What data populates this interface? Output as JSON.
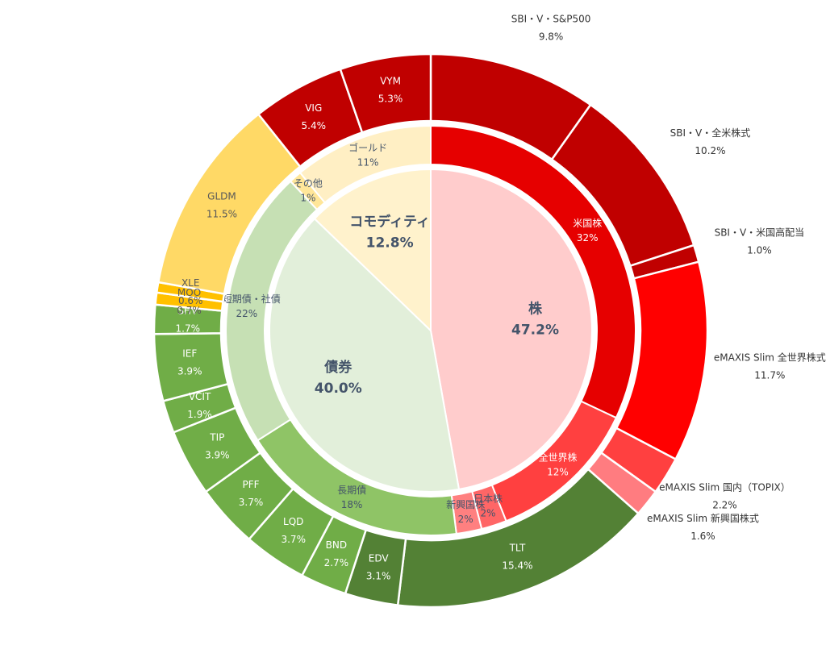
{
  "chart_data": {
    "type": "sunburst",
    "title": "",
    "rings": {
      "category": [
        {
          "name": "株",
          "value": 47.2,
          "label": "47.2%",
          "color": "#ffcccc"
        },
        {
          "name": "債券",
          "value": 40.0,
          "label": "40.0%",
          "color": "#e2efda"
        },
        {
          "name": "コモディティ",
          "value": 12.8,
          "label": "12.8%",
          "color": "#fff2cc"
        }
      ],
      "subcategory": [
        {
          "name": "米国株",
          "value": 32,
          "label": "32%",
          "color": "#e60000"
        },
        {
          "name": "全世界株",
          "value": 12,
          "label": "12%",
          "color": "#ff4040"
        },
        {
          "name": "日本株",
          "value": 2,
          "label": "2%",
          "color": "#ff6666"
        },
        {
          "name": "新興国株",
          "value": 2,
          "label": "2%",
          "color": "#ff8080"
        },
        {
          "name": "長期債",
          "value": 18,
          "label": "18%",
          "color": "#8fc466"
        },
        {
          "name": "中短期債・社債",
          "value": 22,
          "label": "22%",
          "color": "#c6e0b4"
        },
        {
          "name": "その他",
          "value": 1,
          "label": "1%",
          "color": "#ffe699"
        },
        {
          "name": "ゴールド",
          "value": 11,
          "label": "11%",
          "color": "#ffefc4"
        }
      ],
      "holdings": [
        {
          "name": "SBI・V・S&P500",
          "value": 9.8,
          "label": "9.8%",
          "color": "#c00000"
        },
        {
          "name": "SBI・V・全米株式",
          "value": 10.2,
          "label": "10.2%",
          "color": "#c00000"
        },
        {
          "name": "SBI・V・米国高配当",
          "value": 1.0,
          "label": "1.0%",
          "color": "#c00000"
        },
        {
          "name": "eMAXIS Slim 全世界株式",
          "value": 11.7,
          "label": "11.7%",
          "color": "#ff0000"
        },
        {
          "name": "eMAXIS Slim 国内（TOPIX）",
          "value": 2.2,
          "label": "2.2%",
          "color": "#ff4040"
        },
        {
          "name": "eMAXIS Slim 新興国株式",
          "value": 1.6,
          "label": "1.6%",
          "color": "#ff7c80"
        },
        {
          "name": "TLT",
          "value": 15.4,
          "label": "15.4%",
          "color": "#538135"
        },
        {
          "name": "EDV",
          "value": 3.1,
          "label": "3.1%",
          "color": "#538135"
        },
        {
          "name": "BND",
          "value": 2.7,
          "label": "2.7%",
          "color": "#70ad47"
        },
        {
          "name": "LQD",
          "value": 3.7,
          "label": "3.7%",
          "color": "#70ad47"
        },
        {
          "name": "PFF",
          "value": 3.7,
          "label": "3.7%",
          "color": "#70ad47"
        },
        {
          "name": "TIP",
          "value": 3.9,
          "label": "3.9%",
          "color": "#70ad47"
        },
        {
          "name": "VCIT",
          "value": 1.9,
          "label": "1.9%",
          "color": "#70ad47"
        },
        {
          "name": "IEF",
          "value": 3.9,
          "label": "3.9%",
          "color": "#70ad47"
        },
        {
          "name": "SHV",
          "value": 1.7,
          "label": "1.7%",
          "color": "#70ad47"
        },
        {
          "name": "MOO",
          "value": 0.7,
          "label": "0.7%",
          "color": "#ffc000"
        },
        {
          "name": "XLE",
          "value": 0.6,
          "label": "0.6%",
          "color": "#ffc000"
        },
        {
          "name": "GLDM",
          "value": 11.5,
          "label": "11.5%",
          "color": "#ffd966"
        },
        {
          "name": "VIG",
          "value": 5.4,
          "label": "5.4%",
          "color": "#c00000"
        },
        {
          "name": "VYM",
          "value": 5.3,
          "label": "5.3%",
          "color": "#c00000"
        }
      ]
    }
  }
}
